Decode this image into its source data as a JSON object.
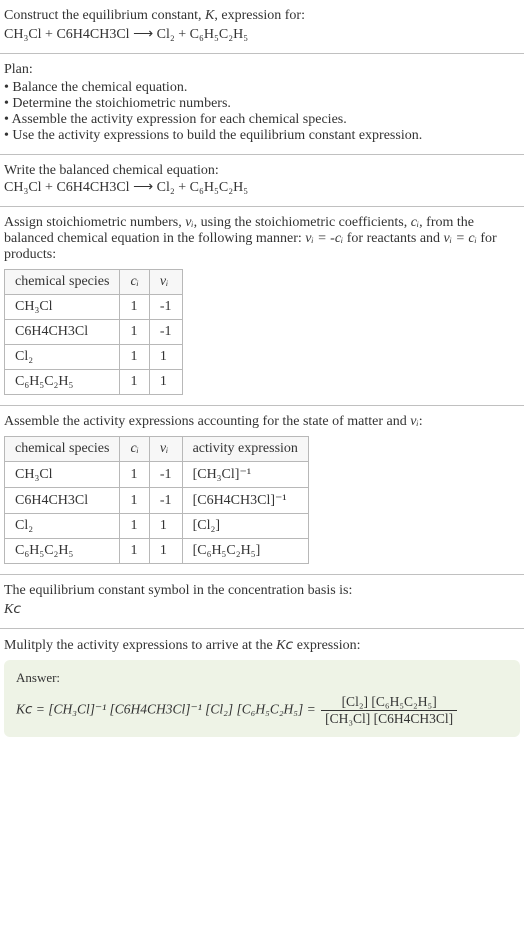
{
  "s1": {
    "title_a": "Construct the equilibrium constant, ",
    "title_b": "K",
    "title_c": ", expression for:",
    "equation": "CH₃Cl + C6H4CH3Cl ⟶ Cl₂ + C₆H₅C₂H₅"
  },
  "s2": {
    "label": "Plan:",
    "items": [
      "Balance the chemical equation.",
      "Determine the stoichiometric numbers.",
      "Assemble the activity expression for each chemical species.",
      "Use the activity expressions to build the equilibrium constant expression."
    ]
  },
  "s3": {
    "label": "Write the balanced chemical equation:",
    "equation": "CH₃Cl + C6H4CH3Cl ⟶ Cl₂ + C₆H₅C₂H₅"
  },
  "s4": {
    "intro_a": "Assign stoichiometric numbers, ",
    "intro_b": "νᵢ",
    "intro_c": ", using the stoichiometric coefficients, ",
    "intro_d": "cᵢ",
    "intro_e": ", from the balanced chemical equation in the following manner: ",
    "intro_f": "νᵢ = -cᵢ",
    "intro_g": " for reactants and ",
    "intro_h": "νᵢ = cᵢ",
    "intro_i": " for products:",
    "headers": {
      "h1": "chemical species",
      "h2": "cᵢ",
      "h3": "νᵢ"
    },
    "rows": [
      {
        "sp": "CH₃Cl",
        "c": "1",
        "v": "-1"
      },
      {
        "sp": "C6H4CH3Cl",
        "c": "1",
        "v": "-1"
      },
      {
        "sp": "Cl₂",
        "c": "1",
        "v": "1"
      },
      {
        "sp": "C₆H₅C₂H₅",
        "c": "1",
        "v": "1"
      }
    ]
  },
  "s5": {
    "intro_a": "Assemble the activity expressions accounting for the state of matter and ",
    "intro_b": "νᵢ",
    "intro_c": ":",
    "headers": {
      "h1": "chemical species",
      "h2": "cᵢ",
      "h3": "νᵢ",
      "h4": "activity expression"
    },
    "rows": [
      {
        "sp": "CH₃Cl",
        "c": "1",
        "v": "-1",
        "ae": "[CH₃Cl]⁻¹"
      },
      {
        "sp": "C6H4CH3Cl",
        "c": "1",
        "v": "-1",
        "ae": "[C6H4CH3Cl]⁻¹"
      },
      {
        "sp": "Cl₂",
        "c": "1",
        "v": "1",
        "ae": "[Cl₂]"
      },
      {
        "sp": "C₆H₅C₂H₅",
        "c": "1",
        "v": "1",
        "ae": "[C₆H₅C₂H₅]"
      }
    ]
  },
  "s6": {
    "line1": "The equilibrium constant symbol in the concentration basis is:",
    "line2": "K𝘤"
  },
  "s7": {
    "intro_a": "Mulitply the activity expressions to arrive at the ",
    "intro_b": "K𝘤",
    "intro_c": " expression:",
    "answer_label": "Answer:",
    "lhs": "K𝘤 = [CH₃Cl]⁻¹ [C6H4CH3Cl]⁻¹ [Cl₂] [C₆H₅C₂H₅] = ",
    "num": "[Cl₂] [C₆H₅C₂H₅]",
    "den": "[CH₃Cl] [C6H4CH3Cl]"
  },
  "colors": {
    "border": "#c0c0c0",
    "table_border": "#b8b8b8",
    "answer_bg": "#eef3e6",
    "text": "#333333",
    "bg": "#ffffff"
  }
}
